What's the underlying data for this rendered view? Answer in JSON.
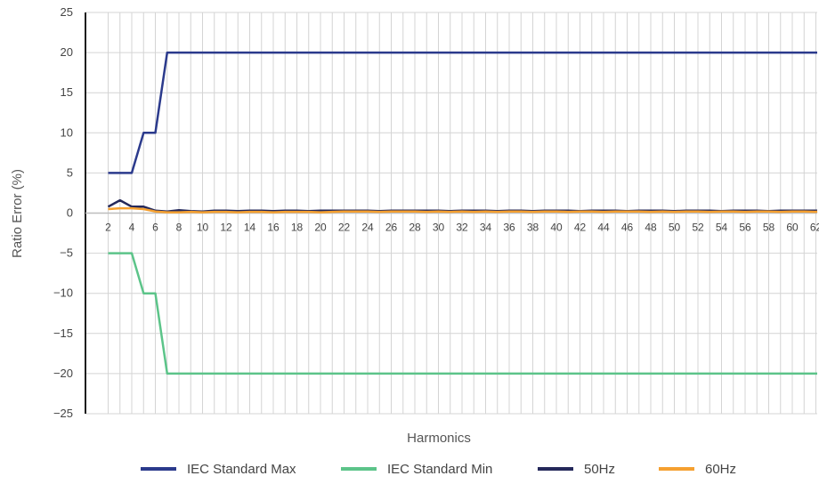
{
  "chart_data": {
    "type": "line",
    "xlabel": "Harmonics",
    "ylabel": "Ratio Error (%)",
    "ylim": [
      -25,
      25
    ],
    "yticks": [
      "25",
      "20",
      "15",
      "10",
      "5",
      "0",
      "−5",
      "−10",
      "−15",
      "−20",
      "−25"
    ],
    "ytick_values": [
      25,
      20,
      15,
      10,
      5,
      0,
      -5,
      -10,
      -15,
      -20,
      -25
    ],
    "x": [
      2,
      3,
      4,
      5,
      6,
      7,
      8,
      9,
      10,
      11,
      12,
      13,
      14,
      15,
      16,
      17,
      18,
      19,
      20,
      21,
      22,
      23,
      24,
      25,
      26,
      27,
      28,
      29,
      30,
      31,
      32,
      33,
      34,
      35,
      36,
      37,
      38,
      39,
      40,
      41,
      42,
      43,
      44,
      45,
      46,
      47,
      48,
      49,
      50,
      51,
      52,
      53,
      54,
      55,
      56,
      57,
      58,
      59,
      60,
      61,
      62,
      63
    ],
    "xtick_labels": [
      "2",
      "4",
      "6",
      "8",
      "10",
      "12",
      "14",
      "16",
      "18",
      "20",
      "22",
      "24",
      "26",
      "28",
      "30",
      "32",
      "34",
      "36",
      "38",
      "40",
      "42",
      "44",
      "46",
      "48",
      "50",
      "52",
      "54",
      "56",
      "58",
      "60",
      "62"
    ],
    "xtick_values": [
      2,
      4,
      6,
      8,
      10,
      12,
      14,
      16,
      18,
      20,
      22,
      24,
      26,
      28,
      30,
      32,
      34,
      36,
      38,
      40,
      42,
      44,
      46,
      48,
      50,
      52,
      54,
      56,
      58,
      60,
      62
    ],
    "grid": true,
    "legend_position": "bottom",
    "series": [
      {
        "name": "IEC Standard Max",
        "color": "#2b3a8c",
        "x": [
          2,
          3,
          4,
          5,
          6,
          7,
          63
        ],
        "values": [
          5,
          5,
          5,
          10,
          10,
          20,
          20
        ]
      },
      {
        "name": "IEC Standard Min",
        "color": "#5cc489",
        "x": [
          2,
          3,
          4,
          5,
          6,
          7,
          63
        ],
        "values": [
          -5,
          -5,
          -5,
          -10,
          -10,
          -20,
          -20
        ]
      },
      {
        "name": "50Hz",
        "color": "#24285a",
        "values": [
          0.8,
          1.6,
          0.8,
          0.8,
          0.3,
          0.2,
          0.35,
          0.25,
          0.2,
          0.3,
          0.3,
          0.25,
          0.3,
          0.3,
          0.25,
          0.3,
          0.3,
          0.25,
          0.3,
          0.3,
          0.3,
          0.3,
          0.3,
          0.25,
          0.3,
          0.3,
          0.3,
          0.3,
          0.3,
          0.25,
          0.3,
          0.3,
          0.3,
          0.25,
          0.3,
          0.3,
          0.25,
          0.3,
          0.3,
          0.3,
          0.25,
          0.3,
          0.3,
          0.3,
          0.25,
          0.3,
          0.3,
          0.3,
          0.25,
          0.3,
          0.3,
          0.3,
          0.25,
          0.3,
          0.3,
          0.3,
          0.25,
          0.3,
          0.3,
          0.3,
          0.3,
          0.3
        ]
      },
      {
        "name": "60Hz",
        "color": "#f5a030",
        "values": [
          0.5,
          0.6,
          0.6,
          0.5,
          0.2,
          0.1,
          0.1,
          0.15,
          0.1,
          0.15,
          0.15,
          0.1,
          0.15,
          0.15,
          0.1,
          0.15,
          0.15,
          0.15,
          0.1,
          0.15,
          0.2,
          0.2,
          0.2,
          0.15,
          0.2,
          0.2,
          0.2,
          0.15,
          0.2,
          0.15,
          0.2,
          0.15,
          0.2,
          0.15,
          0.2,
          0.2,
          0.15,
          0.2,
          0.2,
          0.15,
          0.2,
          0.2,
          0.15,
          0.2,
          0.2,
          0.2,
          0.15,
          0.2,
          0.15,
          0.2,
          0.2,
          0.15,
          0.2,
          0.2,
          0.15,
          0.2,
          0.2,
          0.15,
          0.2,
          0.2,
          0.15,
          0.2
        ]
      }
    ]
  }
}
